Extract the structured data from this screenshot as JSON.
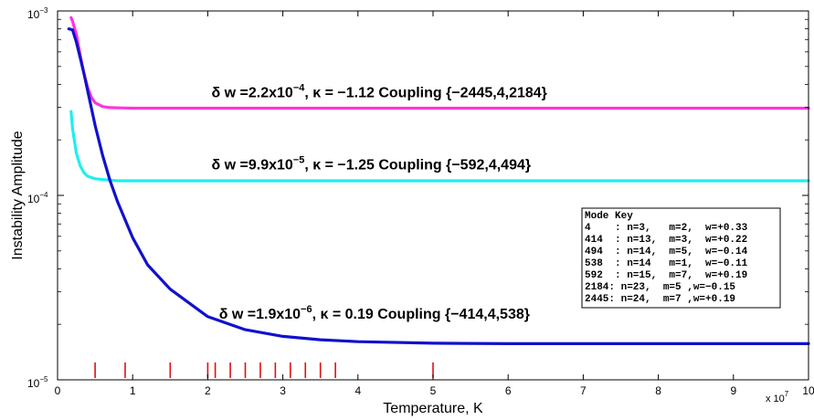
{
  "chart_data": {
    "type": "line",
    "xlabel": "Temperature, K",
    "ylabel": "Instability Amplitude",
    "x_multiplier_base": "x 10",
    "x_multiplier_exp": "7",
    "xlim": [
      0,
      10
    ],
    "ylim": [
      1e-05,
      0.001
    ],
    "yscale": "log",
    "x_ticks": [
      "0",
      "1",
      "2",
      "3",
      "4",
      "5",
      "6",
      "7",
      "8",
      "9",
      "10"
    ],
    "y_ticks": [
      {
        "value": 1e-05,
        "base": "10",
        "exp": "−5"
      },
      {
        "value": 0.0001,
        "base": "10",
        "exp": "−4"
      },
      {
        "value": 0.001,
        "base": "10",
        "exp": "−3"
      }
    ],
    "grid": false,
    "series": [
      {
        "color": "#ff33dd",
        "x": [
          0.18,
          0.2,
          0.25,
          0.3,
          0.35,
          0.4,
          0.45,
          0.5,
          0.6,
          0.7,
          0.85,
          1.0,
          1.5,
          2.0,
          4.0,
          6.0,
          8.0,
          10.0
        ],
        "y": [
          0.00092,
          0.00088,
          0.00075,
          0.00058,
          0.00046,
          0.000385,
          0.00034,
          0.000318,
          0.000303,
          0.000299,
          0.000298,
          0.000297,
          0.000297,
          0.000297,
          0.000297,
          0.000297,
          0.000297,
          0.000297
        ],
        "annotation": {
          "x": 2.05,
          "y": 0.00034,
          "pre": "δ w =2.2x10",
          "exp": "−4",
          "post": ", κ = −1.12 Coupling {−2445,4,2184}"
        }
      },
      {
        "color": "#22eeee",
        "x": [
          0.18,
          0.2,
          0.25,
          0.3,
          0.35,
          0.4,
          0.5,
          0.6,
          0.7,
          0.8,
          1.0,
          1.5,
          2.0,
          4.0,
          6.0,
          8.0,
          10.0
        ],
        "y": [
          0.000285,
          0.00023,
          0.00017,
          0.000145,
          0.000133,
          0.000127,
          0.000123,
          0.000122,
          0.000121,
          0.00012,
          0.00012,
          0.00012,
          0.00012,
          0.00012,
          0.00012,
          0.00012,
          0.00012
        ],
        "annotation": {
          "x": 2.05,
          "y": 0.000138,
          "pre": "δ w =9.9x10",
          "exp": "−5",
          "post": ", κ = −1.25 Coupling {−592,4,494}"
        }
      },
      {
        "color": "#1111cc",
        "x": [
          0.15,
          0.2,
          0.25,
          0.3,
          0.35,
          0.4,
          0.5,
          0.6,
          0.7,
          0.8,
          1.0,
          1.2,
          1.5,
          2.0,
          2.5,
          3.0,
          3.5,
          4.0,
          5.0,
          6.0,
          8.0,
          10.0
        ],
        "y": [
          0.0008,
          0.00079,
          0.00068,
          0.00056,
          0.00046,
          0.00037,
          0.00024,
          0.000165,
          0.00012,
          9.2e-05,
          5.9e-05,
          4.2e-05,
          3.1e-05,
          2.2e-05,
          1.87e-05,
          1.72e-05,
          1.65e-05,
          1.61e-05,
          1.58e-05,
          1.57e-05,
          1.57e-05,
          1.57e-05
        ],
        "annotation": {
          "x": 2.15,
          "y": 2.15e-05,
          "pre": "δ w =1.9x10",
          "exp": "−6",
          "post": ", κ = 0.19 Coupling {−414,4,538}"
        }
      }
    ],
    "markers": {
      "color": "#dd1111",
      "x": [
        0.5,
        0.9,
        1.5,
        2.0,
        2.1,
        2.3,
        2.5,
        2.7,
        2.9,
        3.1,
        3.3,
        3.5,
        3.7,
        5.0
      ]
    },
    "legend": {
      "placement": "right",
      "title": "Mode Key",
      "rows": [
        "4    : n=3,   m=2,  w=+0.33",
        "414  : n=13,  m=3,  w=+0.22",
        "494  : n=14,  m=5,  w=−0.14",
        "538  : n=14   m=1,  w=−0.11",
        "592  : n=15,  m=7,  w=+0.19",
        "2184: n=23,  m=5 ,w=−0.15",
        "2445: n=24,  m=7 ,w=+0.19"
      ]
    }
  }
}
